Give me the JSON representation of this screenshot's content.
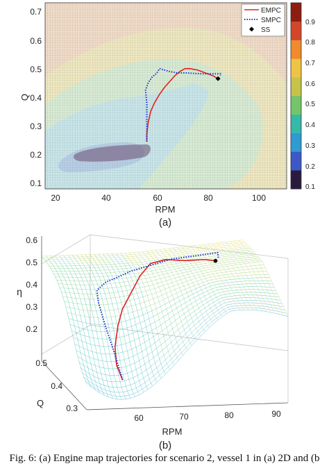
{
  "chart_data": [
    {
      "type": "heatmap",
      "panel_label": "(a)",
      "xlabel": "RPM",
      "ylabel": "Q",
      "xlim": [
        18,
        113
      ],
      "ylim": [
        0.08,
        0.73
      ],
      "xticks": [
        "20",
        "40",
        "60",
        "80",
        "100"
      ],
      "yticks": [
        "0.1",
        "0.2",
        "0.3",
        "0.4",
        "0.5",
        "0.6",
        "0.7"
      ],
      "colorbar": {
        "range": [
          0.1,
          1.0
        ],
        "ticks": [
          "0.1",
          "0.2",
          "0.3",
          "0.4",
          "0.5",
          "0.6",
          "0.7",
          "0.8",
          "0.9"
        ],
        "colors": [
          "#2b1a3f",
          "#3d58c6",
          "#2f9bd0",
          "#35b9a9",
          "#74c56a",
          "#c6c34a",
          "#efc444",
          "#f08a2c",
          "#d2472a",
          "#8e1c10"
        ]
      },
      "legend_position": "top-right",
      "series": [
        {
          "name": "EMPC",
          "style": "solid",
          "color": "#e02020",
          "x": [
            58,
            58,
            58.5,
            59.5,
            61,
            63,
            65,
            67,
            69,
            71,
            73,
            75,
            78,
            81,
            84,
            86
          ],
          "y": [
            0.245,
            0.27,
            0.31,
            0.35,
            0.38,
            0.41,
            0.435,
            0.455,
            0.475,
            0.49,
            0.5,
            0.5,
            0.495,
            0.485,
            0.475,
            0.465
          ]
        },
        {
          "name": "SMPC",
          "style": "dotted",
          "color": "#1f2fd0",
          "x": [
            58,
            58,
            58,
            58,
            57.5,
            58.5,
            60,
            62,
            63,
            65,
            67,
            70,
            74,
            79,
            84,
            87,
            87
          ],
          "y": [
            0.245,
            0.285,
            0.33,
            0.38,
            0.425,
            0.45,
            0.47,
            0.485,
            0.5,
            0.495,
            0.49,
            0.485,
            0.485,
            0.482,
            0.482,
            0.482,
            0.475
          ]
        },
        {
          "name": "SS",
          "style": "marker",
          "color": "#000000",
          "x": [
            86
          ],
          "y": [
            0.465
          ]
        }
      ]
    },
    {
      "type": "surface",
      "panel_label": "(b)",
      "xlabel": "RPM",
      "ylabel": "Q",
      "zlabel": "η",
      "xticks": [
        "60",
        "70",
        "80",
        "90"
      ],
      "yticks": [
        "0.3",
        "0.4",
        "0.5"
      ],
      "zticks": [
        "0.2",
        "0.3",
        "0.4",
        "0.5",
        "0.6"
      ],
      "zlim": [
        0.15,
        0.6
      ],
      "series": [
        {
          "name": "EMPC",
          "color": "#e02020",
          "rpm": [
            58,
            58,
            59,
            61,
            63,
            66,
            69,
            72,
            76,
            80,
            84,
            86
          ],
          "q": [
            0.25,
            0.29,
            0.33,
            0.37,
            0.4,
            0.43,
            0.46,
            0.48,
            0.5,
            0.49,
            0.475,
            0.465
          ],
          "eta": [
            0.25,
            0.28,
            0.32,
            0.37,
            0.41,
            0.45,
            0.49,
            0.52,
            0.52,
            0.52,
            0.53,
            0.53
          ]
        },
        {
          "name": "SMPC",
          "color": "#1f2fd0",
          "rpm": [
            58,
            58,
            58,
            58,
            59,
            62,
            65,
            68,
            72,
            77,
            82,
            87,
            87
          ],
          "q": [
            0.25,
            0.3,
            0.36,
            0.41,
            0.45,
            0.48,
            0.49,
            0.49,
            0.485,
            0.485,
            0.482,
            0.48,
            0.475
          ],
          "eta": [
            0.25,
            0.31,
            0.37,
            0.43,
            0.45,
            0.46,
            0.47,
            0.49,
            0.51,
            0.53,
            0.54,
            0.55,
            0.53
          ]
        },
        {
          "name": "SS",
          "color": "#000000",
          "rpm": [
            86
          ],
          "q": [
            0.465
          ],
          "eta": [
            0.53
          ]
        }
      ]
    }
  ],
  "caption": "Fig. 6: (a) Engine map trajectories for scenario 2, vessel 1 in (a) 2D and (b"
}
